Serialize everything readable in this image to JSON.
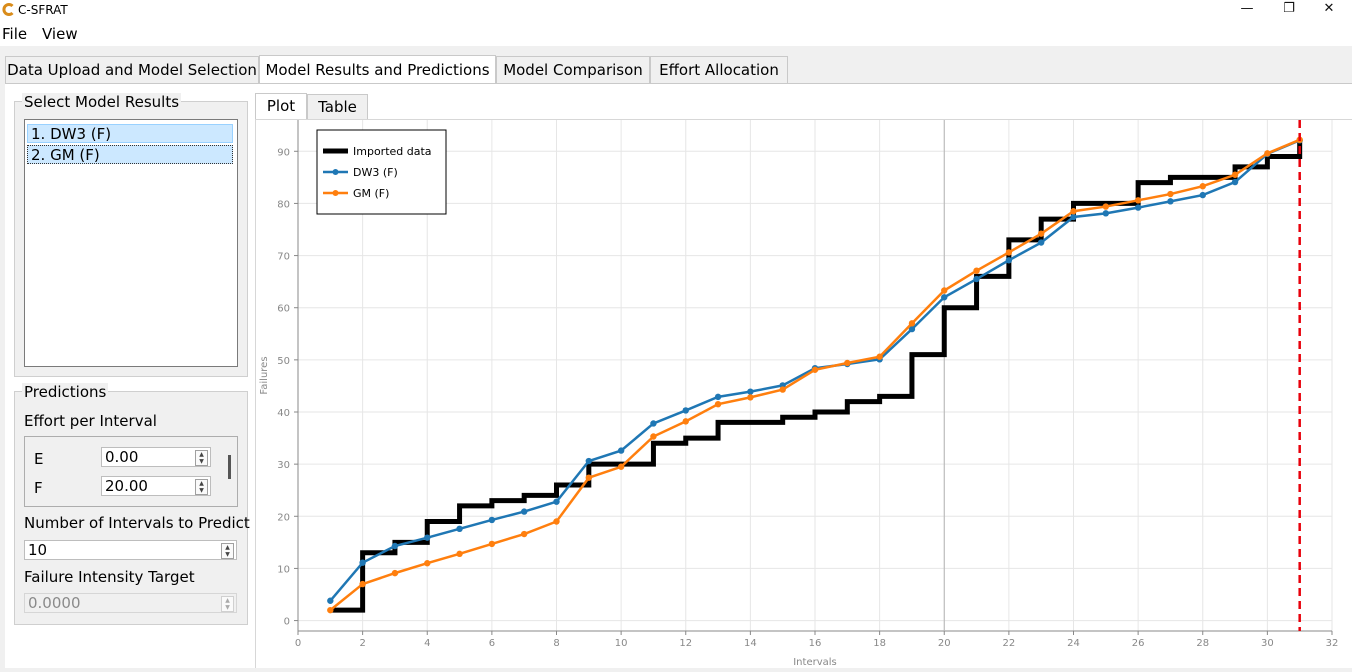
{
  "window": {
    "title": "C-SFRAT",
    "minimize_glyph": "—",
    "maximize_glyph": "❐",
    "close_glyph": "✕"
  },
  "menu": {
    "items": [
      "File",
      "View"
    ]
  },
  "tabs": [
    {
      "label": "Data Upload and Model Selection",
      "active": false
    },
    {
      "label": "Model Results and Predictions",
      "active": true
    },
    {
      "label": "Model Comparison",
      "active": false
    },
    {
      "label": "Effort Allocation",
      "active": false
    }
  ],
  "left_panel": {
    "model_results": {
      "title": "Select Model Results",
      "items": [
        "1. DW3 (F)",
        "2. GM (F)"
      ]
    },
    "predictions": {
      "title": "Predictions",
      "effort_label": "Effort per Interval",
      "effort_rows": [
        {
          "name": "E",
          "value": "0.00"
        },
        {
          "name": "F",
          "value": "20.00"
        }
      ],
      "intervals_label": "Number of Intervals to Predict",
      "intervals_value": "10",
      "target_label": "Failure Intensity Target",
      "target_value": "0.0000"
    }
  },
  "subtabs": [
    {
      "label": "Plot",
      "active": true
    },
    {
      "label": "Table",
      "active": false
    }
  ],
  "colors": {
    "imported": "#000000",
    "dw3": "#1f77b4",
    "gm": "#ff7f0e",
    "marker_line": "#e8000b"
  },
  "chart_data": {
    "type": "line",
    "xlabel": "Intervals",
    "ylabel": "Failures",
    "xlim": [
      0,
      32
    ],
    "ylim": [
      -2,
      96
    ],
    "x_ticks": [
      0,
      2,
      4,
      6,
      8,
      10,
      12,
      14,
      16,
      18,
      20,
      22,
      24,
      26,
      28,
      30,
      32
    ],
    "x_tick_labels": [
      "0",
      "2",
      "4",
      "6",
      "8",
      "10",
      "12",
      "14",
      "16",
      "18",
      "20",
      "22",
      "24",
      "26",
      "28",
      "30",
      "32"
    ],
    "y_ticks": [
      0,
      10,
      20,
      30,
      40,
      50,
      60,
      70,
      80,
      90
    ],
    "y_tick_labels": [
      "0",
      "10",
      "20",
      "30",
      "40",
      "50",
      "60",
      "70",
      "80",
      "90"
    ],
    "grid": true,
    "highlight_vline": 20,
    "prediction_vline": 31,
    "legend": {
      "placement": "top-left",
      "entries": [
        "Imported data",
        "DW3 (F)",
        "GM (F)"
      ]
    },
    "series": [
      {
        "name": "Imported data",
        "style": "step",
        "x": [
          1,
          2,
          3,
          4,
          5,
          6,
          7,
          8,
          9,
          10,
          11,
          12,
          13,
          14,
          15,
          16,
          17,
          18,
          19,
          20,
          21,
          22,
          23,
          24,
          25,
          26,
          27,
          28,
          29,
          30,
          31
        ],
        "values": [
          2,
          13,
          15,
          19,
          22,
          23,
          24,
          26,
          30,
          30,
          34,
          35,
          38,
          38,
          39,
          40,
          42,
          43,
          51,
          60,
          66,
          73,
          77,
          80,
          80,
          84,
          85,
          85,
          87,
          89,
          92
        ]
      },
      {
        "name": "DW3 (F)",
        "style": "line",
        "x": [
          1,
          2,
          3,
          4,
          5,
          6,
          7,
          8,
          9,
          10,
          11,
          12,
          13,
          14,
          15,
          16,
          17,
          18,
          19,
          20,
          21,
          22,
          23,
          24,
          25,
          26,
          27,
          28,
          29,
          30,
          31
        ],
        "values": [
          3.8,
          11.1,
          14.3,
          15.9,
          17.6,
          19.3,
          20.9,
          22.8,
          30.6,
          32.6,
          37.8,
          40.3,
          42.9,
          43.9,
          45.1,
          48.4,
          49.2,
          50.1,
          55.9,
          62.0,
          65.5,
          69.1,
          72.5,
          77.4,
          78.1,
          79.2,
          80.4,
          81.6,
          84.1,
          89.5,
          92.1
        ]
      },
      {
        "name": "GM (F)",
        "style": "line",
        "x": [
          1,
          2,
          3,
          4,
          5,
          6,
          7,
          8,
          9,
          10,
          11,
          12,
          13,
          14,
          15,
          16,
          17,
          18,
          19,
          20,
          21,
          22,
          23,
          24,
          25,
          26,
          27,
          28,
          29,
          30,
          31
        ],
        "values": [
          2.0,
          7.0,
          9.1,
          11.0,
          12.8,
          14.7,
          16.6,
          19.0,
          27.4,
          29.5,
          35.3,
          38.2,
          41.5,
          42.8,
          44.3,
          48.1,
          49.4,
          50.6,
          57.0,
          63.3,
          67.1,
          70.6,
          74.2,
          78.5,
          79.4,
          80.6,
          81.8,
          83.3,
          85.5,
          89.6,
          92.2
        ]
      }
    ]
  }
}
